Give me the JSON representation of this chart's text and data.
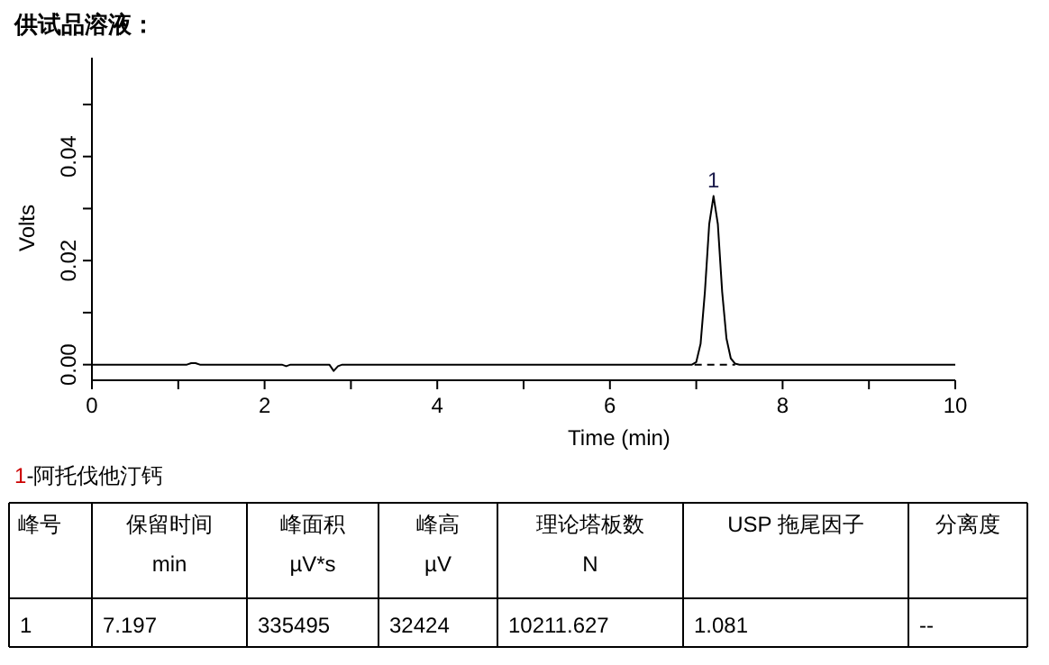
{
  "chart_data": {
    "type": "line",
    "title": "供试品溶液：",
    "xlabel": "Time (min)",
    "ylabel": "Volts",
    "xlim": [
      0,
      10
    ],
    "xticks": [
      0,
      {
        "value": 1,
        "label": null
      },
      2,
      {
        "value": 3,
        "label": null
      },
      4,
      {
        "value": 5,
        "label": null
      },
      6,
      {
        "value": 7,
        "label": null
      },
      8,
      {
        "value": 9,
        "label": null
      },
      10
    ],
    "ylim": [
      -0.003,
      0.059
    ],
    "yticks": [
      {
        "value": 0,
        "label": "0.00"
      },
      {
        "value": 0.01,
        "label": null
      },
      0.02,
      {
        "value": 0.03,
        "label": null
      },
      0.04,
      {
        "value": 0.05,
        "label": null
      }
    ],
    "grid": false,
    "marker": "none",
    "series": [
      {
        "color": "#000000",
        "line_style": "solid",
        "x": [
          0,
          1.1,
          1.15,
          1.2,
          1.25,
          2.2,
          2.25,
          2.3,
          2.75,
          2.8,
          2.85,
          2.9,
          6.95,
          7.0,
          7.05,
          7.1,
          7.15,
          7.2,
          7.25,
          7.3,
          7.35,
          7.4,
          7.45,
          7.5,
          10
        ],
        "values": [
          0,
          0,
          0.0003,
          0.0003,
          0,
          0,
          -0.0003,
          0,
          0,
          -0.0012,
          -0.0003,
          0,
          0,
          0.0005,
          0.004,
          0.014,
          0.027,
          0.0324,
          0.027,
          0.014,
          0.005,
          0.0012,
          0.0002,
          0,
          0
        ]
      },
      {
        "color": "#000000",
        "line_style": "dashed",
        "x": [
          6.98,
          7.45
        ],
        "values": [
          0,
          0
        ]
      }
    ],
    "annotations": [
      {
        "text": "1",
        "x": 7.2,
        "y": 0.0324
      },
      "1-阿托伐他汀钙",
      "峰号",
      "保留时间\nmin",
      "峰面积\nµV*s",
      "峰高\nµV",
      "理论塔板数\nN",
      "USP 拖尾因子",
      "分离度",
      "1",
      "7.197",
      "335495",
      "32424",
      "10211.627",
      "1.081",
      "--"
    ]
  }
}
